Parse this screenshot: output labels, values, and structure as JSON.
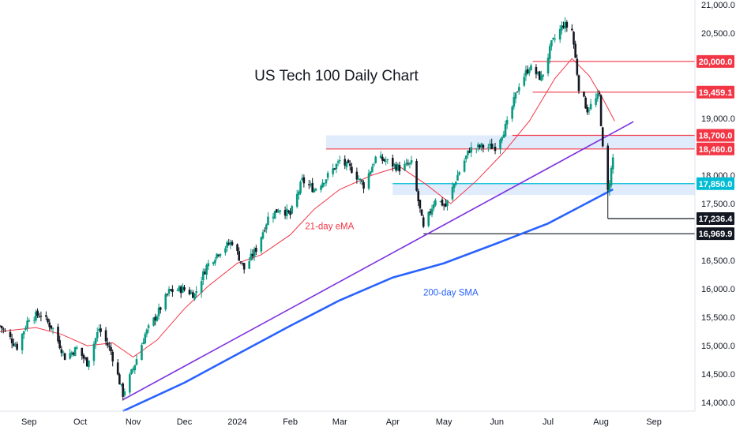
{
  "chart_data": {
    "type": "candlestick",
    "title": "US Tech 100 Daily Chart",
    "y_ticks": [
      "21,000.0",
      "20,500.0",
      "19,000.0",
      "18,000.0",
      "17,500.0",
      "16,500.0",
      "16,000.0",
      "15,500.0",
      "15,000.0",
      "14,500.0",
      "14,000.0"
    ],
    "y_tick_values": [
      21000,
      20500,
      19000,
      18000,
      17500,
      16500,
      16000,
      15500,
      15000,
      14500,
      14000
    ],
    "x_ticks": [
      "Sep",
      "Oct",
      "Nov",
      "Dec",
      "2024",
      "Feb",
      "Mar",
      "Apr",
      "May",
      "Jun",
      "Jul",
      "Aug",
      "Sep"
    ],
    "x_tick_dates": [
      "2023-09-01",
      "2023-10-01",
      "2023-11-01",
      "2023-12-01",
      "2024-01-01",
      "2024-02-01",
      "2024-03-01",
      "2024-04-01",
      "2024-05-01",
      "2024-06-01",
      "2024-07-01",
      "2024-08-01",
      "2024-09-01"
    ],
    "ylim": [
      13850,
      21080
    ],
    "xlim": [
      "2023-08-15",
      "2024-09-25"
    ],
    "levels": [
      {
        "label": "20,000.0",
        "value": 20000,
        "color": "#f23645",
        "start": "2024-06-22"
      },
      {
        "label": "19,459.1",
        "value": 19459.1,
        "color": "#f23645",
        "start": "2024-06-22"
      },
      {
        "label": "18,700.0",
        "value": 18700,
        "color": "#f23645",
        "start": "2024-06-10"
      },
      {
        "label": "18,460.0",
        "value": 18460,
        "color": "#f23645",
        "start": "2024-02-22"
      },
      {
        "label": "17,850.0",
        "value": 17850,
        "color": "#00bcd4",
        "start": "2024-04-01"
      },
      {
        "label": "17,236.4",
        "value": 17236.4,
        "color": "#131722",
        "start": "2024-08-05"
      },
      {
        "label": "16,969.9",
        "value": 16969.9,
        "color": "#131722",
        "start": "2024-04-19"
      }
    ],
    "zones": [
      {
        "y1": 18460,
        "y2": 18700,
        "start": "2024-02-22",
        "end": "2024-09-25"
      },
      {
        "y1": 17650,
        "y2": 17850,
        "start": "2024-04-01",
        "end": "2024-09-25"
      }
    ],
    "trendline": {
      "color": "#7b2fe0",
      "points": [
        [
          "2023-10-26",
          14050
        ],
        [
          "2024-08-20",
          18940
        ]
      ]
    },
    "ohlc_anchors": [
      [
        "2023-08-15",
        15350
      ],
      [
        "2023-08-25",
        14980
      ],
      [
        "2023-09-01",
        15500
      ],
      [
        "2023-09-08",
        15550
      ],
      [
        "2023-09-15",
        15300
      ],
      [
        "2023-09-22",
        14800
      ],
      [
        "2023-09-29",
        14950
      ],
      [
        "2023-10-05",
        14700
      ],
      [
        "2023-10-12",
        15300
      ],
      [
        "2023-10-19",
        14900
      ],
      [
        "2023-10-26",
        14150
      ],
      [
        "2023-11-01",
        14600
      ],
      [
        "2023-11-08",
        15200
      ],
      [
        "2023-11-15",
        15550
      ],
      [
        "2023-11-22",
        15950
      ],
      [
        "2023-11-30",
        16000
      ],
      [
        "2023-12-07",
        15900
      ],
      [
        "2023-12-14",
        16400
      ],
      [
        "2023-12-21",
        16650
      ],
      [
        "2023-12-29",
        16830
      ],
      [
        "2024-01-05",
        16350
      ],
      [
        "2024-01-12",
        16700
      ],
      [
        "2024-01-19",
        17250
      ],
      [
        "2024-01-26",
        17420
      ],
      [
        "2024-02-01",
        17300
      ],
      [
        "2024-02-08",
        17900
      ],
      [
        "2024-02-15",
        17750
      ],
      [
        "2024-02-22",
        17950
      ],
      [
        "2024-03-01",
        18250
      ],
      [
        "2024-03-08",
        18100
      ],
      [
        "2024-03-15",
        17820
      ],
      [
        "2024-03-22",
        18300
      ],
      [
        "2024-03-28",
        18250
      ],
      [
        "2024-04-05",
        18120
      ],
      [
        "2024-04-12",
        18200
      ],
      [
        "2024-04-19",
        17050
      ],
      [
        "2024-04-26",
        17600
      ],
      [
        "2024-05-02",
        17450
      ],
      [
        "2024-05-09",
        18000
      ],
      [
        "2024-05-16",
        18450
      ],
      [
        "2024-05-23",
        18500
      ],
      [
        "2024-05-31",
        18500
      ],
      [
        "2024-06-07",
        18900
      ],
      [
        "2024-06-14",
        19600
      ],
      [
        "2024-06-20",
        19900
      ],
      [
        "2024-06-27",
        19700
      ],
      [
        "2024-07-03",
        20300
      ],
      [
        "2024-07-10",
        20650
      ],
      [
        "2024-07-15",
        20550
      ],
      [
        "2024-07-19",
        19550
      ],
      [
        "2024-07-24",
        19150
      ],
      [
        "2024-07-31",
        19400
      ],
      [
        "2024-08-02",
        18450
      ],
      [
        "2024-08-05",
        17700
      ],
      [
        "2024-08-08",
        18300
      ]
    ],
    "ema21": [
      [
        "2023-08-15",
        15250
      ],
      [
        "2023-09-05",
        15320
      ],
      [
        "2023-09-20",
        15200
      ],
      [
        "2023-10-05",
        15000
      ],
      [
        "2023-10-20",
        15050
      ],
      [
        "2023-11-01",
        14800
      ],
      [
        "2023-11-15",
        15100
      ],
      [
        "2023-12-01",
        15650
      ],
      [
        "2023-12-15",
        16050
      ],
      [
        "2024-01-01",
        16450
      ],
      [
        "2024-01-15",
        16600
      ],
      [
        "2024-02-01",
        16950
      ],
      [
        "2024-02-15",
        17400
      ],
      [
        "2024-03-01",
        17750
      ],
      [
        "2024-03-20",
        18000
      ],
      [
        "2024-04-05",
        18150
      ],
      [
        "2024-04-20",
        17850
      ],
      [
        "2024-05-05",
        17500
      ],
      [
        "2024-05-20",
        17900
      ],
      [
        "2024-06-05",
        18400
      ],
      [
        "2024-06-20",
        18950
      ],
      [
        "2024-07-05",
        19700
      ],
      [
        "2024-07-15",
        20050
      ],
      [
        "2024-07-25",
        19750
      ],
      [
        "2024-08-02",
        19350
      ],
      [
        "2024-08-09",
        18950
      ]
    ],
    "sma200": [
      [
        "2023-10-26",
        13850
      ],
      [
        "2023-12-01",
        14350
      ],
      [
        "2024-01-01",
        14850
      ],
      [
        "2024-02-01",
        15350
      ],
      [
        "2024-03-01",
        15800
      ],
      [
        "2024-04-01",
        16200
      ],
      [
        "2024-05-01",
        16450
      ],
      [
        "2024-06-01",
        16800
      ],
      [
        "2024-07-01",
        17150
      ],
      [
        "2024-07-20",
        17450
      ],
      [
        "2024-08-08",
        17750
      ]
    ],
    "annotations": [
      {
        "text": "21-day eMA",
        "x": "2024-02-24",
        "y": 17050,
        "color": "#f23645"
      },
      {
        "text": "200-day SMA",
        "x": "2024-05-05",
        "y": 15880,
        "color": "#2962ff"
      }
    ],
    "colors": {
      "up": "#089981",
      "down": "#131722",
      "ema": "#f23645",
      "sma": "#2962ff",
      "zone": "#dbe8fb",
      "grid": "#f0f3fa"
    }
  }
}
